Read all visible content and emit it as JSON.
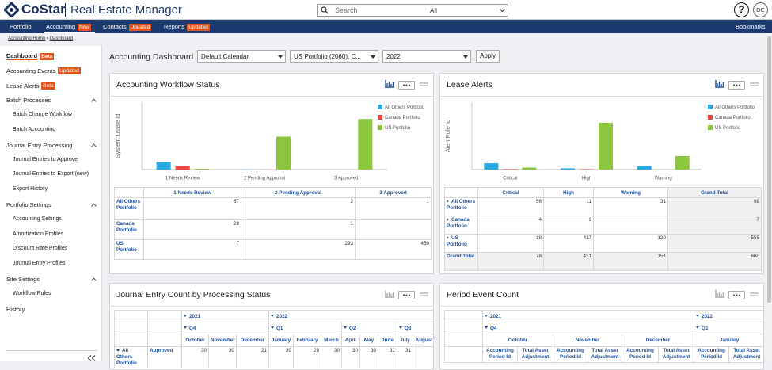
{
  "header": {
    "logo": "CoStar",
    "app_title": "Real Estate Manager",
    "search_placeholder": "Search",
    "search_scope": "All",
    "help": "?",
    "user_initials": "DC"
  },
  "nav": {
    "items": [
      {
        "label": "Portfolio"
      },
      {
        "label": "Accounting",
        "badge": "New"
      },
      {
        "label": "Contacts",
        "badge": "Updated"
      },
      {
        "label": "Reports",
        "badge": "Updated"
      }
    ],
    "bookmarks": "Bookmarks"
  },
  "breadcrumb": {
    "items": [
      "Accounting Home",
      "Dashboard"
    ],
    "separator": "»"
  },
  "sidebar": [
    {
      "label": "Dashboard",
      "badge": "Beta"
    },
    {
      "label": "Accounting Events",
      "badge": "Updated"
    },
    {
      "label": "Lease Alerts",
      "badge": "Beta"
    },
    {
      "label": "Batch Processes",
      "children": [
        "Batch Change Workflow",
        "Batch Accounting"
      ]
    },
    {
      "label": "Journal Entry Processing",
      "children": [
        "Journal Entries to Approve",
        "Journal Entries to Export (new)",
        "Export History"
      ]
    },
    {
      "label": "Portfolio Settings",
      "children": [
        "Accounting Settings",
        "Amortization Profiles",
        "Discount Rate Profiles",
        "Journal Entry Profiles"
      ]
    },
    {
      "label": "Site Settings",
      "children": [
        "Workflow Rules"
      ]
    },
    {
      "label": "History"
    }
  ],
  "toolbar": {
    "title": "Accounting Dashboard",
    "calendar": "Default Calendar",
    "portfolio": "US Portfolio (2060), C...",
    "year": "2022",
    "apply": "Apply"
  },
  "workflow_status": {
    "title": "Accounting Workflow Status",
    "chart": {
      "type": "bar",
      "ylabel": "System Lease Id",
      "categories": [
        "1 Needs Review",
        "2 Pending Approval",
        "3 Approved"
      ],
      "ylim": [
        0,
        600
      ],
      "series": [
        {
          "name": "All Others Portfolio",
          "color": "#29a9e1",
          "values": [
            67,
            2,
            1
          ]
        },
        {
          "name": "Canada Portfolio",
          "color": "#e8463e",
          "values": [
            28,
            1,
            null
          ]
        },
        {
          "name": "US Portfolio",
          "color": "#8cc63e",
          "values": [
            7,
            293,
            450
          ]
        }
      ]
    }
  },
  "lease_alerts": {
    "title": "Lease Alerts",
    "chart": {
      "type": "bar",
      "ylabel": "Alert Rule Id",
      "categories": [
        "Critical",
        "High",
        "Warning"
      ],
      "ylim": [
        0,
        600
      ],
      "series": [
        {
          "name": "All Others Portfolio",
          "color": "#29a9e1",
          "values": [
            56,
            11,
            31
          ]
        },
        {
          "name": "Canada Portfolio",
          "color": "#e8463e",
          "values": [
            4,
            3,
            null
          ]
        },
        {
          "name": "US Portfolio",
          "color": "#8cc63e",
          "values": [
            18,
            417,
            120
          ]
        }
      ]
    },
    "table": {
      "total_label": "Grand Total",
      "row_totals": [
        98,
        7,
        555
      ],
      "column_totals": [
        78,
        431,
        151
      ],
      "grand_total": 660
    }
  },
  "journal_entry_count": {
    "title": "Journal Entry Count by Processing Status",
    "years": [
      {
        "label": "2021",
        "quarters": [
          {
            "label": "Q4",
            "months": [
              "October",
              "November",
              "December"
            ]
          }
        ]
      },
      {
        "label": "2022",
        "quarters": [
          {
            "label": "Q1",
            "months": [
              "January",
              "February",
              "March"
            ]
          },
          {
            "label": "Q2",
            "months": [
              "April",
              "May",
              "June"
            ]
          },
          {
            "label": "Q3",
            "months": [
              "July",
              "August"
            ]
          }
        ]
      }
    ],
    "rows": [
      {
        "portfolio": "All Others Portfolio",
        "status": "Approved",
        "values": [
          30,
          30,
          21,
          39,
          29,
          30,
          30,
          30,
          31,
          31,
          null
        ]
      }
    ]
  },
  "period_event_count": {
    "title": "Period Event Count",
    "years": [
      {
        "label": "2021",
        "quarters": [
          {
            "label": "Q4",
            "months": [
              "October",
              "November",
              "December"
            ]
          }
        ]
      },
      {
        "label": "2022",
        "quarters": [
          {
            "label": "Q1",
            "months": [
              "January"
            ]
          }
        ]
      }
    ],
    "measures": [
      "Accounting Period Id",
      "Total Asset Adjustment"
    ]
  }
}
